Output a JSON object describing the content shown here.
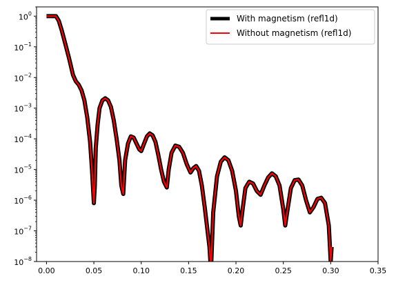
{
  "chart_data": {
    "type": "line",
    "title": "",
    "xlabel": "",
    "ylabel": "",
    "xscale": "linear",
    "yscale": "log",
    "xlim": [
      -0.0105,
      0.35
    ],
    "ylim": [
      1e-08,
      2.0
    ],
    "grid": false,
    "legend_position": "top-right",
    "x_ticks": [
      0.0,
      0.05,
      0.1,
      0.15,
      0.2,
      0.25,
      0.3,
      0.35
    ],
    "x_tick_labels": [
      "0.00",
      "0.05",
      "0.10",
      "0.15",
      "0.20",
      "0.25",
      "0.30",
      "0.35"
    ],
    "y_ticks": [
      -8,
      -7,
      -6,
      -5,
      -4,
      -3,
      -2,
      -1,
      0
    ],
    "y_tick_labels": [
      {
        "base": "10",
        "exp": "−8"
      },
      {
        "base": "10",
        "exp": "−7"
      },
      {
        "base": "10",
        "exp": "−6"
      },
      {
        "base": "10",
        "exp": "−5"
      },
      {
        "base": "10",
        "exp": "−4"
      },
      {
        "base": "10",
        "exp": "−3"
      },
      {
        "base": "10",
        "exp": "−2"
      },
      {
        "base": "10",
        "exp": "−1"
      },
      {
        "base": "10",
        "exp": "0"
      }
    ],
    "series": [
      {
        "name": "With magnetism (refl1d)",
        "color": "#000000",
        "style": "thick",
        "x": [
          0.0,
          0.005,
          0.01,
          0.013,
          0.016,
          0.02,
          0.024,
          0.028,
          0.031,
          0.034,
          0.037,
          0.04,
          0.043,
          0.046,
          0.048,
          0.05,
          0.051,
          0.052,
          0.054,
          0.056,
          0.059,
          0.062,
          0.065,
          0.068,
          0.071,
          0.074,
          0.077,
          0.079,
          0.081,
          0.083,
          0.086,
          0.089,
          0.092,
          0.095,
          0.098,
          0.1,
          0.103,
          0.106,
          0.109,
          0.112,
          0.115,
          0.118,
          0.121,
          0.124,
          0.127,
          0.129,
          0.132,
          0.136,
          0.14,
          0.144,
          0.148,
          0.152,
          0.155,
          0.158,
          0.161,
          0.164,
          0.167,
          0.17,
          0.172,
          0.173,
          0.174,
          0.176,
          0.18,
          0.184,
          0.188,
          0.192,
          0.196,
          0.2,
          0.203,
          0.205,
          0.207,
          0.21,
          0.214,
          0.218,
          0.222,
          0.226,
          0.23,
          0.234,
          0.238,
          0.242,
          0.246,
          0.25,
          0.252,
          0.254,
          0.258,
          0.262,
          0.266,
          0.27,
          0.274,
          0.278,
          0.282,
          0.286,
          0.29,
          0.294,
          0.298,
          0.3,
          0.301
        ],
        "y": [
          1.0,
          1.0,
          1.0,
          0.7,
          0.35,
          0.12,
          0.04,
          0.012,
          0.0075,
          0.0058,
          0.0038,
          0.0018,
          0.0005,
          8e-05,
          1e-05,
          8e-07,
          3e-06,
          5e-05,
          0.0003,
          0.001,
          0.0018,
          0.0021,
          0.0018,
          0.0011,
          0.0004,
          0.0001,
          2e-05,
          3e-06,
          1.6e-06,
          2e-05,
          7e-05,
          0.00012,
          0.00011,
          7e-05,
          4.5e-05,
          4e-05,
          7e-05,
          0.00012,
          0.00015,
          0.00013,
          8e-05,
          3e-05,
          1e-05,
          4e-06,
          2.6e-06,
          1e-05,
          3.5e-05,
          6e-05,
          5.5e-05,
          3.5e-05,
          1.5e-05,
          8e-06,
          1.1e-05,
          1.3e-05,
          9e-06,
          3e-06,
          6e-07,
          1e-07,
          3e-08,
          1e-08,
          1e-08,
          4e-07,
          6e-06,
          1.8e-05,
          2.5e-05,
          2e-05,
          9e-06,
          2e-06,
          3e-07,
          1.5e-07,
          5e-07,
          2.5e-06,
          4e-06,
          3.5e-06,
          2e-06,
          1.5e-06,
          3e-06,
          5.5e-06,
          7.5e-06,
          6e-06,
          3e-06,
          5e-07,
          1.5e-07,
          4e-07,
          2.5e-06,
          4.5e-06,
          4.7e-06,
          3e-06,
          1e-06,
          4e-07,
          6e-07,
          1.1e-06,
          1.2e-06,
          8e-07,
          1.5e-07,
          1e-08,
          3e-08
        ]
      },
      {
        "name": "Without magnetism (refl1d)",
        "color": "#ff0000",
        "style": "thin",
        "x": [
          0.0,
          0.005,
          0.01,
          0.013,
          0.016,
          0.02,
          0.024,
          0.028,
          0.031,
          0.034,
          0.037,
          0.04,
          0.043,
          0.046,
          0.048,
          0.05,
          0.051,
          0.052,
          0.054,
          0.056,
          0.059,
          0.062,
          0.065,
          0.068,
          0.071,
          0.074,
          0.077,
          0.079,
          0.081,
          0.083,
          0.086,
          0.089,
          0.092,
          0.095,
          0.098,
          0.1,
          0.103,
          0.106,
          0.109,
          0.112,
          0.115,
          0.118,
          0.121,
          0.124,
          0.127,
          0.129,
          0.132,
          0.136,
          0.14,
          0.144,
          0.148,
          0.152,
          0.155,
          0.158,
          0.161,
          0.164,
          0.167,
          0.17,
          0.172,
          0.173,
          0.174,
          0.176,
          0.18,
          0.184,
          0.188,
          0.192,
          0.196,
          0.2,
          0.203,
          0.205,
          0.207,
          0.21,
          0.214,
          0.218,
          0.222,
          0.226,
          0.23,
          0.234,
          0.238,
          0.242,
          0.246,
          0.25,
          0.252,
          0.254,
          0.258,
          0.262,
          0.266,
          0.27,
          0.274,
          0.278,
          0.282,
          0.286,
          0.29,
          0.294,
          0.298,
          0.3,
          0.301
        ],
        "y": [
          1.0,
          1.0,
          1.0,
          0.7,
          0.35,
          0.12,
          0.04,
          0.012,
          0.0075,
          0.0058,
          0.0038,
          0.0018,
          0.0005,
          8e-05,
          1e-05,
          8e-07,
          3e-06,
          5e-05,
          0.0003,
          0.001,
          0.0018,
          0.0021,
          0.0018,
          0.0011,
          0.0004,
          0.0001,
          2e-05,
          3e-06,
          1.6e-06,
          2e-05,
          7e-05,
          0.00012,
          0.00011,
          7e-05,
          4.5e-05,
          4e-05,
          7e-05,
          0.00012,
          0.00015,
          0.00013,
          8e-05,
          3e-05,
          1e-05,
          4e-06,
          2.6e-06,
          1e-05,
          3.5e-05,
          6e-05,
          5.5e-05,
          3.5e-05,
          1.5e-05,
          8e-06,
          1.1e-05,
          1.3e-05,
          9e-06,
          3e-06,
          6e-07,
          1e-07,
          3e-08,
          1e-08,
          1e-08,
          4e-07,
          6e-06,
          1.8e-05,
          2.5e-05,
          2e-05,
          9e-06,
          2e-06,
          3e-07,
          1.5e-07,
          5e-07,
          2.5e-06,
          4e-06,
          3.5e-06,
          2e-06,
          1.5e-06,
          3e-06,
          5.5e-06,
          7.5e-06,
          6e-06,
          3e-06,
          5e-07,
          1.5e-07,
          4e-07,
          2.5e-06,
          4.5e-06,
          4.7e-06,
          3e-06,
          1e-06,
          4e-07,
          6e-07,
          1.1e-06,
          1.2e-06,
          8e-07,
          1.5e-07,
          1e-08,
          3e-08
        ]
      }
    ]
  }
}
